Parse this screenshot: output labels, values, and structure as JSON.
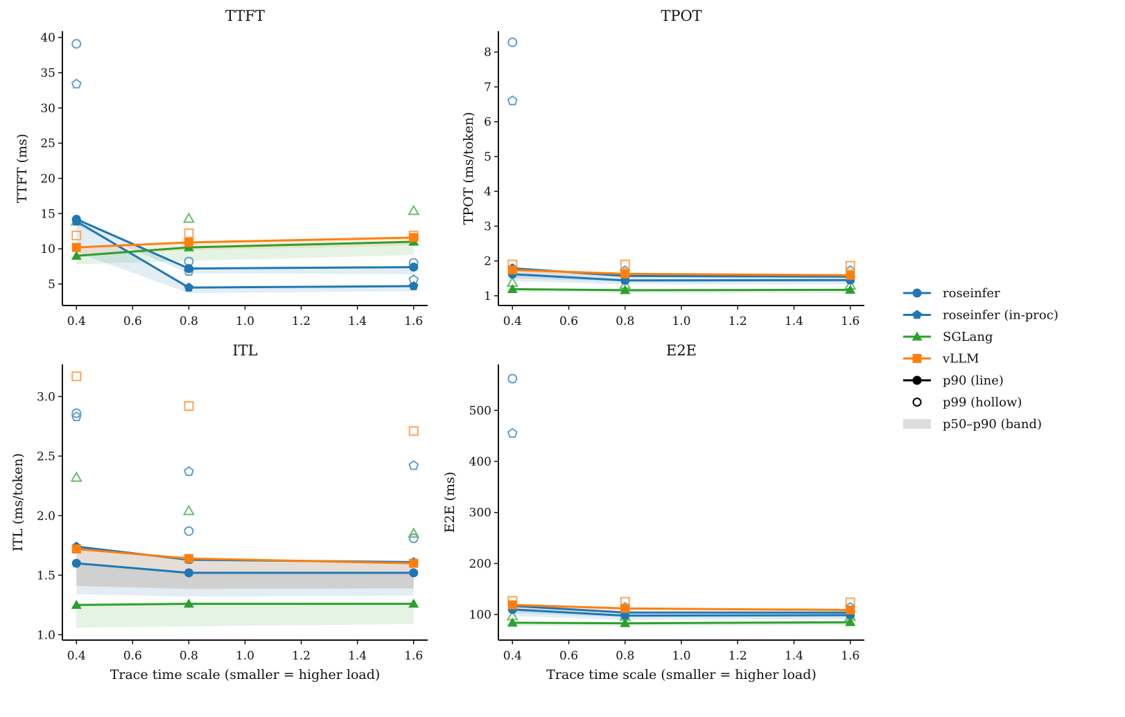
{
  "chart_data": [
    {
      "type": "line",
      "id": "ttft",
      "title": "TTFT",
      "xlabel": "",
      "ylabel": "TTFT (ms)",
      "x": [
        0.4,
        0.8,
        1.6
      ],
      "xlim": [
        0.35,
        1.65
      ],
      "ylim": [
        1.95,
        40.9
      ],
      "xticks": [
        0.4,
        0.6,
        0.8,
        1.0,
        1.2,
        1.4,
        1.6
      ],
      "xtick_labels": [
        "0.4",
        "0.6",
        "0.8",
        "1.0",
        "1.2",
        "1.4",
        "1.6"
      ],
      "yticks": [
        5,
        10,
        15,
        20,
        25,
        30,
        35,
        40
      ],
      "ytick_labels": [
        "5",
        "10",
        "15",
        "20",
        "25",
        "30",
        "35",
        "40"
      ],
      "grid": false,
      "series": [
        {
          "name": "roseinfer",
          "p90": [
            14.2,
            7.2,
            7.4
          ],
          "p99": [
            39.1,
            8.2,
            8.0
          ],
          "p50": [
            13.3,
            6.5,
            6.4
          ]
        },
        {
          "name": "roseinfer (in-proc)",
          "p90": [
            13.9,
            4.5,
            4.7
          ],
          "p99": [
            33.4,
            6.8,
            5.6
          ],
          "p50": [
            9.5,
            3.7,
            4.0
          ]
        },
        {
          "name": "SGLang",
          "p90": [
            9.0,
            10.2,
            11.0
          ],
          "p99": [
            13.9,
            14.3,
            15.4
          ],
          "p50": [
            7.8,
            8.3,
            9.1
          ]
        },
        {
          "name": "vLLM",
          "p90": [
            10.2,
            10.9,
            11.6
          ],
          "p99": [
            11.9,
            12.2,
            11.9
          ],
          "p50": [
            9.0,
            9.8,
            10.5
          ]
        }
      ]
    },
    {
      "type": "line",
      "id": "tpot",
      "title": "TPOT",
      "xlabel": "",
      "ylabel": "TPOT (ms/token)",
      "x": [
        0.4,
        0.8,
        1.6
      ],
      "xlim": [
        0.35,
        1.65
      ],
      "ylim": [
        0.72,
        8.6
      ],
      "xticks": [
        0.4,
        0.6,
        0.8,
        1.0,
        1.2,
        1.4,
        1.6
      ],
      "xtick_labels": [
        "0.4",
        "0.6",
        "0.8",
        "1.0",
        "1.2",
        "1.4",
        "1.6"
      ],
      "yticks": [
        1,
        2,
        3,
        4,
        5,
        6,
        7,
        8
      ],
      "ytick_labels": [
        "1",
        "2",
        "3",
        "4",
        "5",
        "6",
        "7",
        "8"
      ],
      "grid": false,
      "series": [
        {
          "name": "roseinfer",
          "p90": [
            1.62,
            1.44,
            1.45
          ],
          "p99": [
            8.28,
            1.55,
            1.55
          ],
          "p50": [
            1.42,
            1.33,
            1.33
          ]
        },
        {
          "name": "roseinfer (in-proc)",
          "p90": [
            1.79,
            1.57,
            1.55
          ],
          "p99": [
            6.6,
            1.72,
            1.72
          ],
          "p50": [
            1.5,
            1.4,
            1.4
          ]
        },
        {
          "name": "SGLang",
          "p90": [
            1.19,
            1.16,
            1.17
          ],
          "p99": [
            1.38,
            1.32,
            1.3
          ],
          "p50": [
            1.1,
            1.08,
            1.08
          ]
        },
        {
          "name": "vLLM",
          "p90": [
            1.74,
            1.63,
            1.59
          ],
          "p99": [
            1.9,
            1.9,
            1.86
          ],
          "p50": [
            1.6,
            1.52,
            1.5
          ]
        }
      ]
    },
    {
      "type": "line",
      "id": "itl",
      "title": "ITL",
      "xlabel": "Trace time scale (smaller = higher load)",
      "ylabel": "ITL (ms/token)",
      "x": [
        0.4,
        0.8,
        1.6
      ],
      "xlim": [
        0.35,
        1.65
      ],
      "ylim": [
        0.955,
        3.27
      ],
      "xticks": [
        0.4,
        0.6,
        0.8,
        1.0,
        1.2,
        1.4,
        1.6
      ],
      "xtick_labels": [
        "0.4",
        "0.6",
        "0.8",
        "1.0",
        "1.2",
        "1.4",
        "1.6"
      ],
      "yticks": [
        1.0,
        1.5,
        2.0,
        2.5,
        3.0
      ],
      "ytick_labels": [
        "1.0",
        "1.5",
        "2.0",
        "2.5",
        "3.0"
      ],
      "grid": false,
      "series": [
        {
          "name": "roseinfer",
          "p90": [
            1.6,
            1.52,
            1.52
          ],
          "p99": [
            2.86,
            1.87,
            1.81
          ],
          "p50": [
            1.41,
            1.39,
            1.39
          ]
        },
        {
          "name": "roseinfer (in-proc)",
          "p90": [
            1.74,
            1.63,
            1.61
          ],
          "p99": [
            2.83,
            2.37,
            2.42
          ],
          "p50": [
            1.34,
            1.32,
            1.33
          ]
        },
        {
          "name": "SGLang",
          "p90": [
            1.25,
            1.26,
            1.26
          ],
          "p99": [
            2.32,
            2.04,
            1.85
          ],
          "p50": [
            1.06,
            1.07,
            1.09
          ]
        },
        {
          "name": "vLLM",
          "p90": [
            1.72,
            1.64,
            1.6
          ],
          "p99": [
            3.17,
            2.92,
            2.71
          ],
          "p50": [
            1.41,
            1.38,
            1.39
          ]
        }
      ]
    },
    {
      "type": "line",
      "id": "e2e",
      "title": "E2E",
      "xlabel": "Trace time scale (smaller = higher load)",
      "ylabel": "E2E (ms)",
      "x": [
        0.4,
        0.8,
        1.6
      ],
      "xlim": [
        0.35,
        1.65
      ],
      "ylim": [
        50,
        590
      ],
      "xticks": [
        0.4,
        0.6,
        0.8,
        1.0,
        1.2,
        1.4,
        1.6
      ],
      "xtick_labels": [
        "0.4",
        "0.6",
        "0.8",
        "1.0",
        "1.2",
        "1.4",
        "1.6"
      ],
      "yticks": [
        100,
        200,
        300,
        400,
        500
      ],
      "ytick_labels": [
        "100",
        "200",
        "300",
        "400",
        "500"
      ],
      "grid": false,
      "series": [
        {
          "name": "roseinfer",
          "p90": [
            110,
            98,
            99
          ],
          "p99": [
            562,
            106,
            106
          ],
          "p50": [
            97,
            90,
            91
          ]
        },
        {
          "name": "roseinfer (in-proc)",
          "p90": [
            117,
            104,
            104
          ],
          "p99": [
            455,
            114,
            114
          ],
          "p50": [
            103,
            95,
            95
          ]
        },
        {
          "name": "SGLang",
          "p90": [
            84,
            83,
            85
          ],
          "p99": [
            97,
            96,
            96
          ],
          "p50": [
            78,
            78,
            79
          ]
        },
        {
          "name": "vLLM",
          "p90": [
            119,
            112,
            109
          ],
          "p99": [
            127,
            125,
            124
          ],
          "p50": [
            108,
            103,
            101
          ]
        }
      ]
    }
  ],
  "legend": {
    "placement": "right",
    "entries": [
      {
        "label": "roseinfer",
        "color": "#1f77b4",
        "marker": "circle",
        "kind": "line"
      },
      {
        "label": "roseinfer (in-proc)",
        "color": "#1f77b4",
        "marker": "pentagon",
        "kind": "line"
      },
      {
        "label": "SGLang",
        "color": "#2ca02c",
        "marker": "triangle",
        "kind": "line"
      },
      {
        "label": "vLLM",
        "color": "#ff7f0e",
        "marker": "square",
        "kind": "line"
      },
      {
        "label": "p90 (line)",
        "color": "#000000",
        "marker": "circle",
        "kind": "line"
      },
      {
        "label": "p99 (hollow)",
        "color": "#000000",
        "marker": "circle",
        "kind": "hollow"
      },
      {
        "label": "p50–p90 (band)",
        "color": "#dddddd",
        "marker": "none",
        "kind": "band"
      }
    ]
  },
  "series_styles": {
    "roseinfer": {
      "color": "#1f77b4",
      "marker": "circle"
    },
    "roseinfer (in-proc)": {
      "color": "#1f77b4",
      "marker": "pentagon"
    },
    "SGLang": {
      "color": "#2ca02c",
      "marker": "triangle"
    },
    "vLLM": {
      "color": "#ff7f0e",
      "marker": "square"
    }
  }
}
